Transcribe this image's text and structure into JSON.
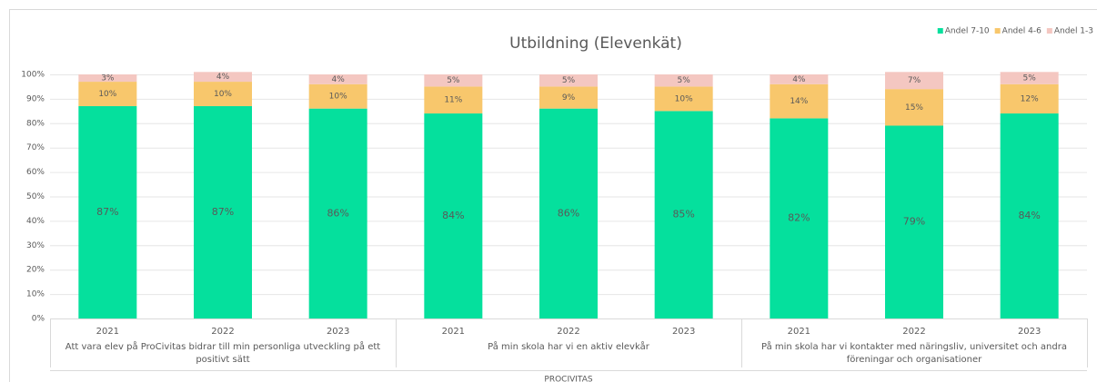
{
  "chart_data": {
    "type": "stacked_bar",
    "title": "Utbildning (Elevenkät)",
    "categories": [
      "2021",
      "2022",
      "2023",
      "2021",
      "2022",
      "2023",
      "2021",
      "2022",
      "2023"
    ],
    "group_labels": [
      "Att vara elev på ProCivitas bidrar till min personliga utveckling på ett positivt sätt",
      "På min skola har vi en aktiv elevkår",
      "På min skola har vi kontakter med näringsliv, universitet och andra föreningar och organisationer"
    ],
    "super_label": "PROCIVITAS",
    "series": [
      {
        "name": "Andel 7-10",
        "color": "#05e09d",
        "values": [
          87,
          87,
          86,
          84,
          86,
          85,
          82,
          79,
          84
        ],
        "value_labels": [
          "87%",
          "87%",
          "86%",
          "84%",
          "86%",
          "85%",
          "82%",
          "79%",
          "84%"
        ]
      },
      {
        "name": "Andel 4-6",
        "color": "#f8c76c",
        "values": [
          10,
          10,
          10,
          11,
          9,
          10,
          14,
          15,
          12
        ],
        "value_labels": [
          "10%",
          "10%",
          "10%",
          "11%",
          "9%",
          "10%",
          "14%",
          "15%",
          "12%"
        ]
      },
      {
        "name": "Andel 1-3",
        "color": "#f4c7c1",
        "values": [
          3,
          4,
          4,
          5,
          5,
          5,
          4,
          7,
          5
        ],
        "value_labels": [
          "3%",
          "4%",
          "4%",
          "5%",
          "5%",
          "5%",
          "4%",
          "7%",
          "5%"
        ]
      }
    ],
    "ylim": [
      0,
      100
    ],
    "yticks": [
      {
        "value": 0,
        "label": "0%"
      },
      {
        "value": 10,
        "label": "10%"
      },
      {
        "value": 20,
        "label": "20%"
      },
      {
        "value": 30,
        "label": "30%"
      },
      {
        "value": 40,
        "label": "40%"
      },
      {
        "value": 50,
        "label": "50%"
      },
      {
        "value": 60,
        "label": "60%"
      },
      {
        "value": 70,
        "label": "70%"
      },
      {
        "value": 80,
        "label": "80%"
      },
      {
        "value": 90,
        "label": "90%"
      },
      {
        "value": 100,
        "label": "100%"
      }
    ],
    "grid": true,
    "legend": "top-right"
  }
}
